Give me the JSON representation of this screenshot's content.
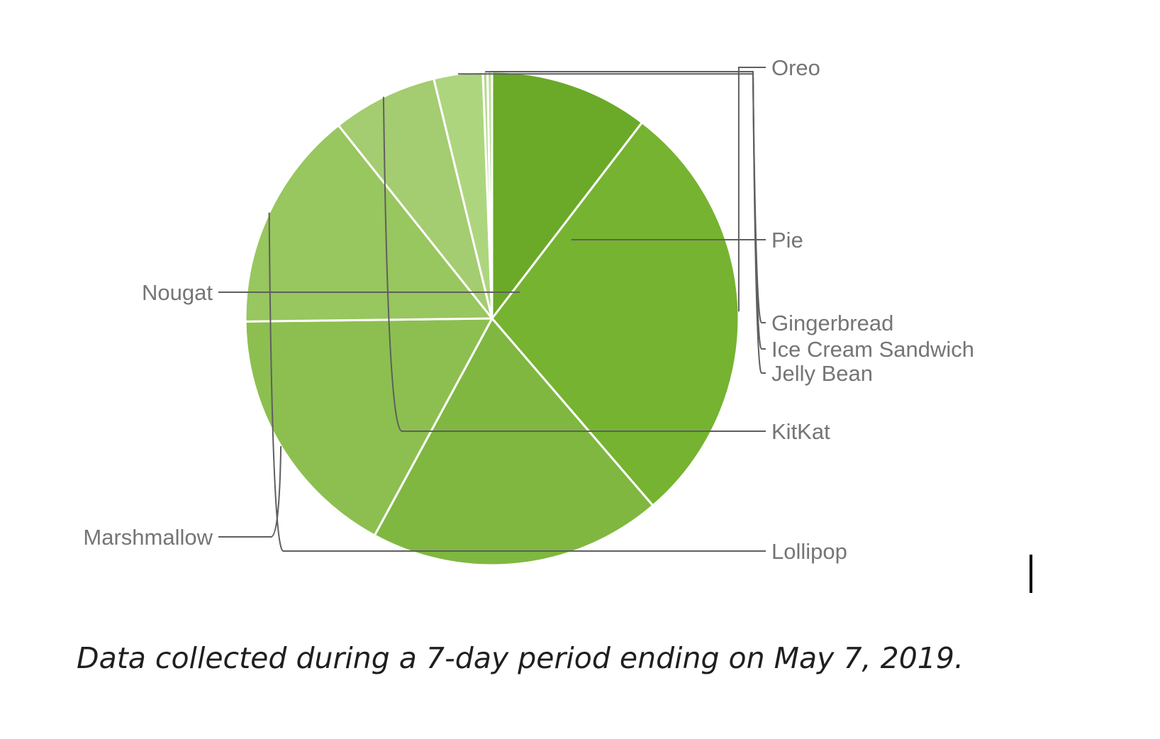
{
  "chart_data": {
    "type": "pie",
    "title": "",
    "start_angle": 90,
    "direction": "clockwise",
    "slices": [
      {
        "label": "Pie",
        "value": 10.4,
        "color": "#6aaa28"
      },
      {
        "label": "Oreo",
        "value": 28.3,
        "color": "#76b331"
      },
      {
        "label": "Nougat",
        "value": 19.2,
        "color": "#7fb740"
      },
      {
        "label": "Marshmallow",
        "value": 16.9,
        "color": "#8cbf50"
      },
      {
        "label": "Lollipop",
        "value": 14.5,
        "color": "#98c65f"
      },
      {
        "label": "KitKat",
        "value": 6.9,
        "color": "#a4cc70"
      },
      {
        "label": "Jelly Bean",
        "value": 3.2,
        "color": "#add57e"
      },
      {
        "label": "Ice Cream Sandwich",
        "value": 0.3,
        "color": "#b6da8d"
      },
      {
        "label": "Gingerbread",
        "value": 0.3,
        "color": "#bde09a"
      }
    ]
  },
  "caption": "Data collected during a 7-day period ending on May 7, 2019."
}
